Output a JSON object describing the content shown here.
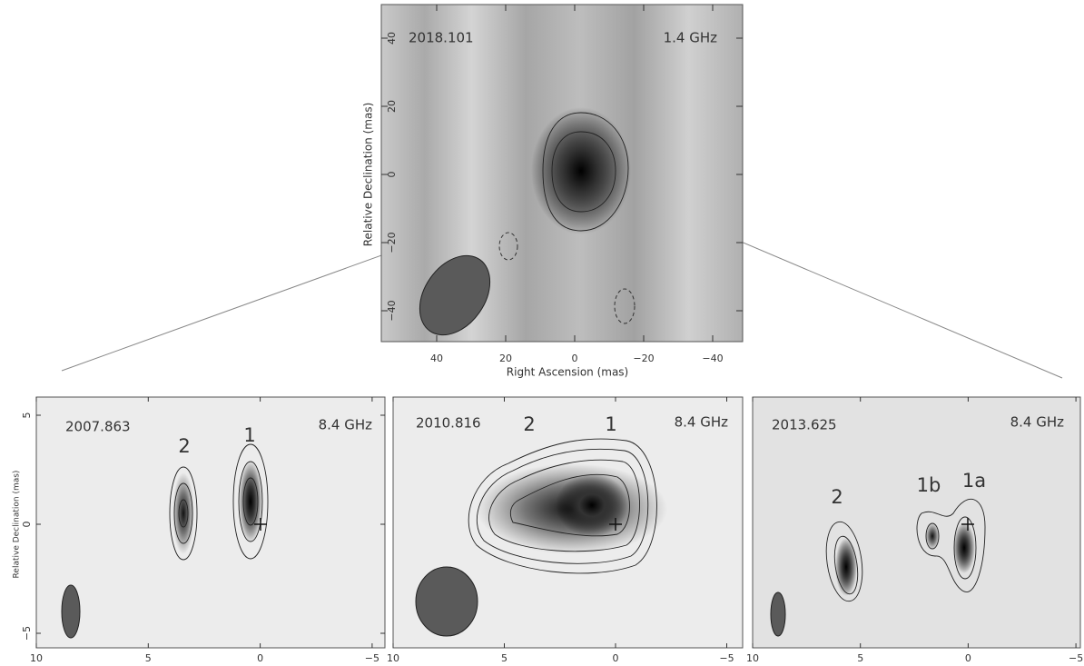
{
  "top_panel": {
    "epoch": "2018.101",
    "frequency": "1.4 GHz",
    "x_axis_label": "Right Ascension  (mas)",
    "y_axis_label": "Relative Declination  (mas)",
    "xticks": [
      "40",
      "20",
      "0",
      "−20",
      "−40"
    ],
    "yticks": [
      "40",
      "20",
      "0",
      "−20",
      "−40"
    ]
  },
  "bottom_y_axis_label": "Relative Declination  (mas)",
  "bottom_panels": [
    {
      "epoch": "2007.863",
      "frequency": "8.4 GHz",
      "components": [
        "2",
        "1"
      ],
      "xticks": [
        "10",
        "5",
        "0",
        "−5"
      ],
      "yticks": [
        "5",
        "0",
        "−5"
      ]
    },
    {
      "epoch": "2010.816",
      "frequency": "8.4 GHz",
      "components": [
        "2",
        "1"
      ],
      "xticks": [
        "10",
        "5",
        "0",
        "−5"
      ]
    },
    {
      "epoch": "2013.625",
      "frequency": "8.4 GHz",
      "components": [
        "2",
        "1b",
        "1a"
      ],
      "xticks": [
        "10",
        "5",
        "0",
        "−5"
      ]
    }
  ]
}
